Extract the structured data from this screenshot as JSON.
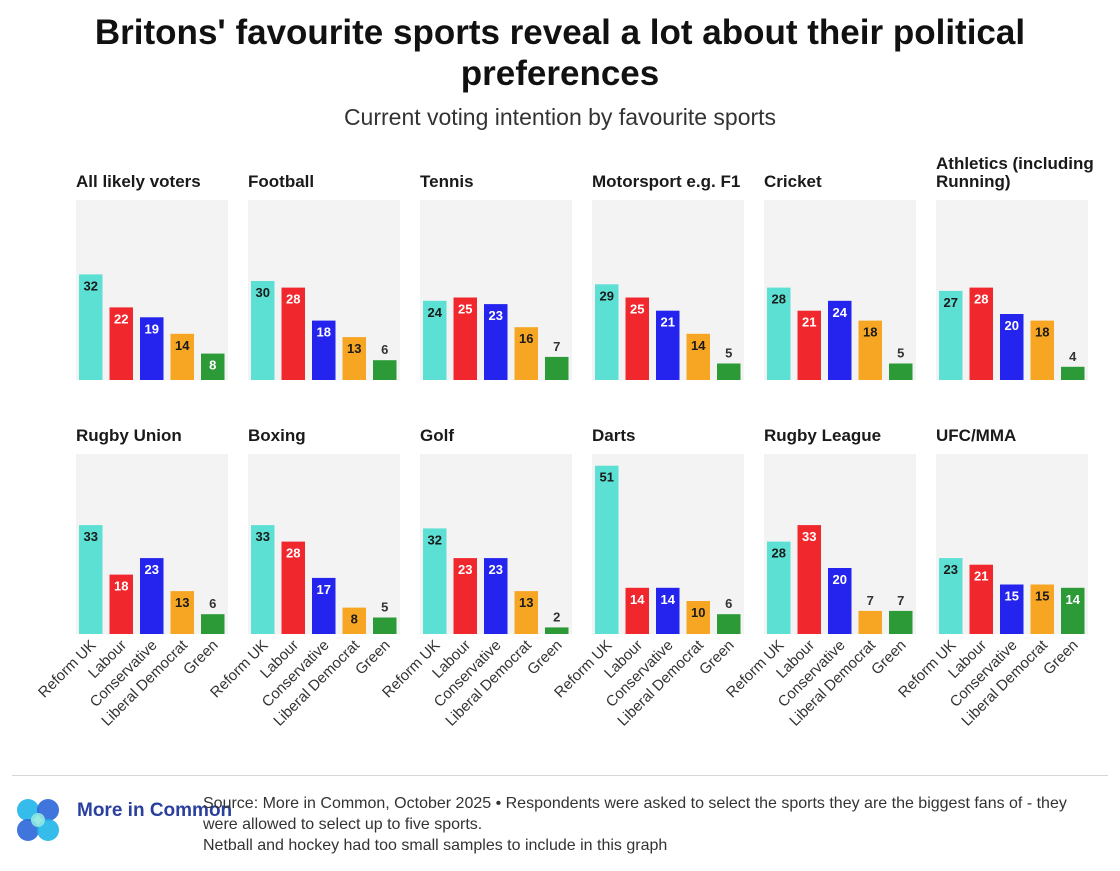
{
  "header": {
    "title": "Britons' favourite sports reveal a lot about their political preferences",
    "subtitle": "Current voting intention by favourite sports"
  },
  "colors": {
    "Reform UK": "#5ce0d3",
    "Labour": "#f0282d",
    "Conservative": "#2424ee",
    "Liberal Democrat": "#f6a623",
    "Green": "#2b9a37",
    "panel_bg": "#f3f3f3"
  },
  "chart_data": {
    "type": "bar",
    "title": "Britons' favourite sports reveal a lot about their political preferences",
    "subtitle": "Current voting intention by favourite sports",
    "categories": [
      "Reform UK",
      "Labour",
      "Conservative",
      "Liberal Democrat",
      "Green"
    ],
    "ylim": [
      0,
      55
    ],
    "grid": false,
    "panels": [
      {
        "name": "All likely voters",
        "values": [
          32,
          22,
          19,
          14,
          8
        ]
      },
      {
        "name": "Football",
        "values": [
          30,
          28,
          18,
          13,
          6
        ]
      },
      {
        "name": "Tennis",
        "values": [
          24,
          25,
          23,
          16,
          7
        ]
      },
      {
        "name": "Motorsport e.g. F1",
        "values": [
          29,
          25,
          21,
          14,
          5
        ]
      },
      {
        "name": "Cricket",
        "values": [
          28,
          21,
          24,
          18,
          5
        ]
      },
      {
        "name": "Athletics (including Running)",
        "values": [
          27,
          28,
          20,
          18,
          4
        ]
      },
      {
        "name": "Rugby Union",
        "values": [
          33,
          18,
          23,
          13,
          6
        ]
      },
      {
        "name": "Boxing",
        "values": [
          33,
          28,
          17,
          8,
          5
        ]
      },
      {
        "name": "Golf",
        "values": [
          32,
          23,
          23,
          13,
          2
        ]
      },
      {
        "name": "Darts",
        "values": [
          51,
          14,
          14,
          10,
          6
        ]
      },
      {
        "name": "Rugby League",
        "values": [
          28,
          33,
          20,
          7,
          7
        ]
      },
      {
        "name": "UFC/MMA",
        "values": [
          23,
          21,
          15,
          15,
          14
        ]
      }
    ]
  },
  "footer": {
    "logo_text": "More in Common",
    "source": "Source: More in Common, October 2025 • Respondents were asked to select the sports they are the biggest fans of - they were allowed to select up to five sports.",
    "note": "Netball and hockey had too small samples to include in this graph"
  }
}
